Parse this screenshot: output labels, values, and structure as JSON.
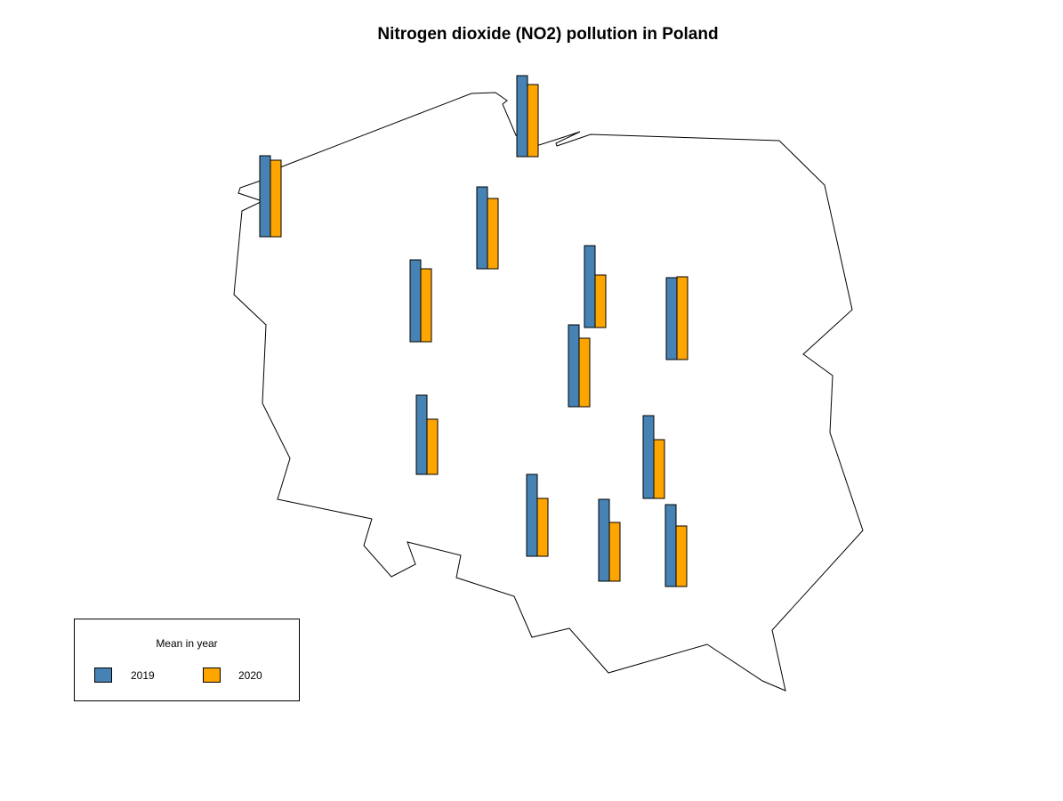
{
  "title": "Nitrogen dioxide (NO2) pollution in Poland",
  "colors": {
    "series_2019": "#4682B4",
    "series_2020": "#FFA500",
    "outline": "#000000",
    "background": "#FFFFFF"
  },
  "legend": {
    "title": "Mean in year",
    "items": [
      {
        "label": "2019",
        "color": "#4682B4"
      },
      {
        "label": "2020",
        "color": "#FFA500"
      }
    ],
    "placement": "bottom-left"
  },
  "chart_data": {
    "type": "bar",
    "title": "Nitrogen dioxide (NO2) pollution in Poland",
    "map": "Poland outline with a pair of bars at each city location",
    "series": [
      {
        "name": "2019",
        "values": [
          91,
          91,
          92,
          92,
          92,
          92,
          92,
          89,
          93,
          92,
          92,
          92
        ]
      },
      {
        "name": "2020",
        "values": [
          81,
          86,
          79,
          59,
          82,
          93,
          77,
          62,
          66,
          65,
          66,
          68
        ]
      }
    ],
    "value_unit": "relative bar height (no axis printed)"
  }
}
